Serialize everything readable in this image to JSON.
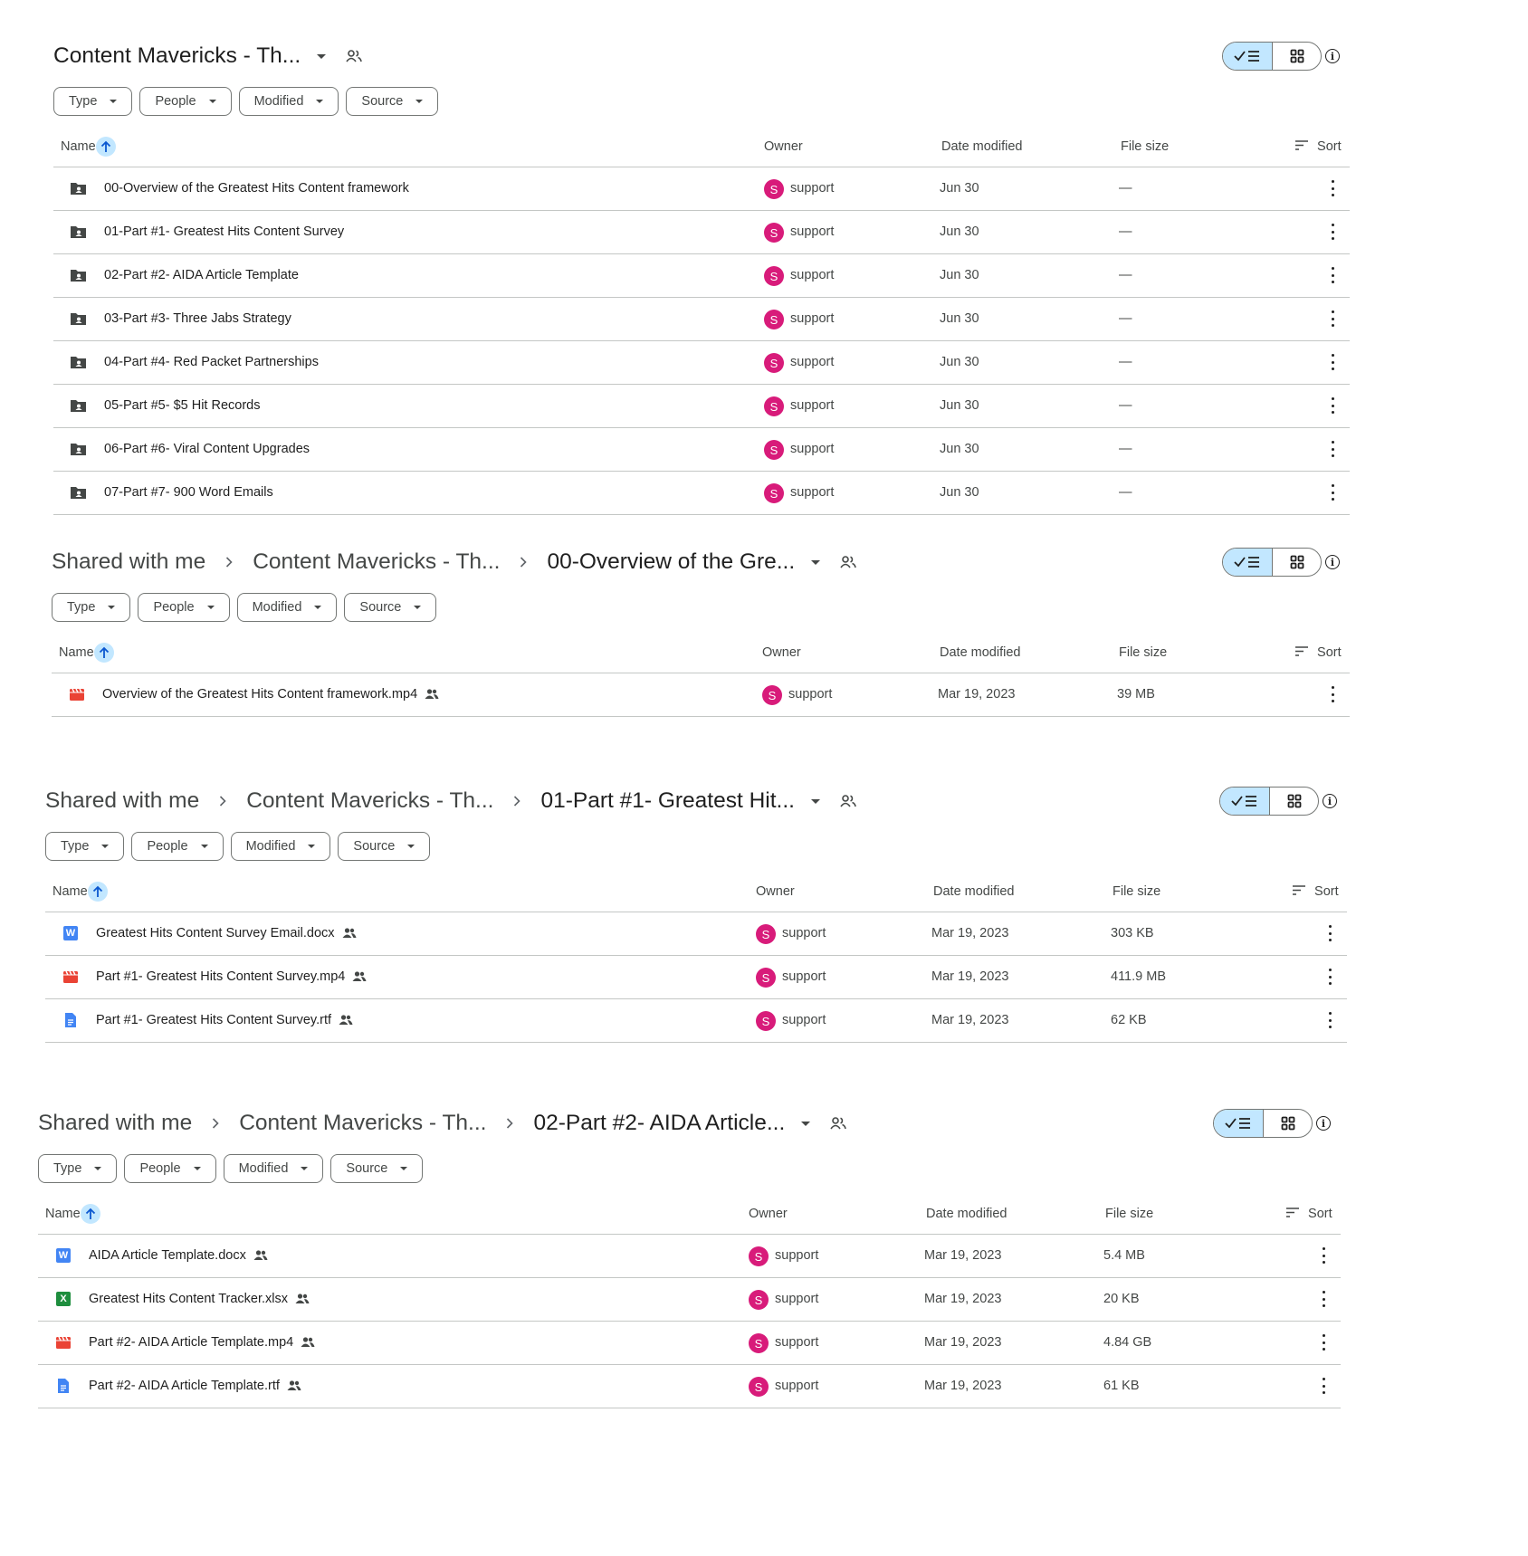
{
  "ui": {
    "chips": [
      "Type",
      "People",
      "Modified",
      "Source"
    ],
    "col_name": "Name",
    "col_owner": "Owner",
    "col_date": "Date modified",
    "col_size": "File size",
    "sort_label": "Sort",
    "avatar_letter": "S",
    "info_glyph": "i",
    "accent_color": "#c2e7ff",
    "avatar_color": "#d81b7a"
  },
  "panels": [
    {
      "crumbs": [],
      "current": "Content Mavericks - Th...",
      "rows": [
        {
          "icon": "shared-folder-icon",
          "name": "00-Overview of the Greatest Hits Content framework",
          "owner": "support",
          "date": "Jun 30",
          "size": "—",
          "shared": false
        },
        {
          "icon": "shared-folder-icon",
          "name": "01-Part #1- Greatest Hits Content Survey",
          "owner": "support",
          "date": "Jun 30",
          "size": "—",
          "shared": false
        },
        {
          "icon": "shared-folder-icon",
          "name": "02-Part #2- AIDA Article Template",
          "owner": "support",
          "date": "Jun 30",
          "size": "—",
          "shared": false
        },
        {
          "icon": "shared-folder-icon",
          "name": "03-Part #3- Three Jabs Strategy",
          "owner": "support",
          "date": "Jun 30",
          "size": "—",
          "shared": false
        },
        {
          "icon": "shared-folder-icon",
          "name": "04-Part #4- Red Packet Partnerships",
          "owner": "support",
          "date": "Jun 30",
          "size": "—",
          "shared": false
        },
        {
          "icon": "shared-folder-icon",
          "name": "05-Part #5- $5 Hit Records",
          "owner": "support",
          "date": "Jun 30",
          "size": "—",
          "shared": false
        },
        {
          "icon": "shared-folder-icon",
          "name": "06-Part #6- Viral Content Upgrades",
          "owner": "support",
          "date": "Jun 30",
          "size": "—",
          "shared": false
        },
        {
          "icon": "shared-folder-icon",
          "name": "07-Part #7- 900 Word Emails",
          "owner": "support",
          "date": "Jun 30",
          "size": "—",
          "shared": false
        }
      ]
    },
    {
      "crumbs": [
        "Shared with me",
        "Content Mavericks - Th..."
      ],
      "current": "00-Overview of the Gre...",
      "rows": [
        {
          "icon": "video-file-icon",
          "name": "Overview of the Greatest Hits Content framework.mp4",
          "owner": "support",
          "date": "Mar 19, 2023",
          "size": "39 MB",
          "shared": true
        }
      ]
    },
    {
      "crumbs": [
        "Shared with me",
        "Content Mavericks - Th..."
      ],
      "current": "01-Part #1- Greatest Hit...",
      "rows": [
        {
          "icon": "word-file-icon",
          "name": "Greatest Hits Content Survey Email.docx",
          "owner": "support",
          "date": "Mar 19, 2023",
          "size": "303 KB",
          "shared": true
        },
        {
          "icon": "video-file-icon",
          "name": "Part #1- Greatest Hits Content Survey.mp4",
          "owner": "support",
          "date": "Mar 19, 2023",
          "size": "411.9 MB",
          "shared": true
        },
        {
          "icon": "doc-file-icon",
          "name": "Part #1- Greatest Hits Content Survey.rtf",
          "owner": "support",
          "date": "Mar 19, 2023",
          "size": "62 KB",
          "shared": true
        }
      ]
    },
    {
      "crumbs": [
        "Shared with me",
        "Content Mavericks - Th..."
      ],
      "current": "02-Part #2- AIDA Article...",
      "rows": [
        {
          "icon": "word-file-icon",
          "name": "AIDA Article Template.docx",
          "owner": "support",
          "date": "Mar 19, 2023",
          "size": "5.4 MB",
          "shared": true
        },
        {
          "icon": "excel-file-icon",
          "name": "Greatest Hits Content Tracker.xlsx",
          "owner": "support",
          "date": "Mar 19, 2023",
          "size": "20 KB",
          "shared": true
        },
        {
          "icon": "video-file-icon",
          "name": "Part #2- AIDA Article Template.mp4",
          "owner": "support",
          "date": "Mar 19, 2023",
          "size": "4.84 GB",
          "shared": true
        },
        {
          "icon": "doc-file-icon",
          "name": "Part #2- AIDA Article Template.rtf",
          "owner": "support",
          "date": "Mar 19, 2023",
          "size": "61 KB",
          "shared": true
        }
      ]
    }
  ]
}
